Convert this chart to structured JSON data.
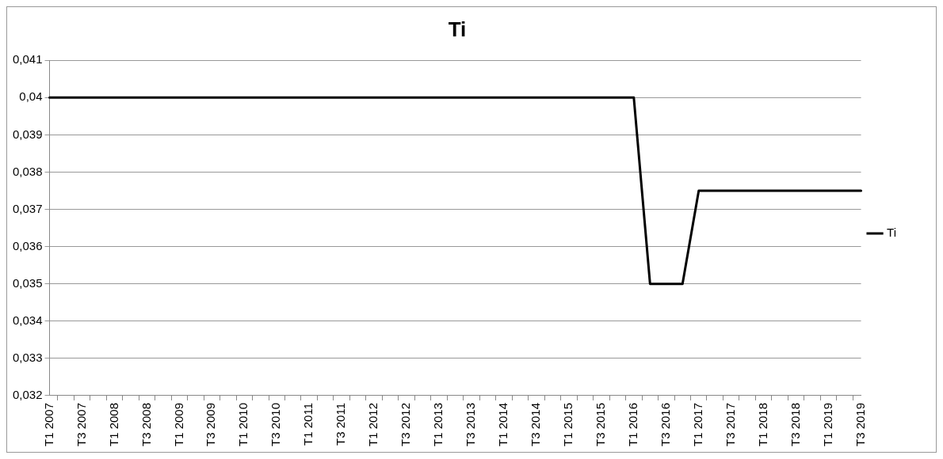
{
  "chart_data": {
    "type": "line",
    "title": "Ti",
    "categories": [
      "T1 2007",
      null,
      "T3 2007",
      null,
      "T1 2008",
      null,
      "T3 2008",
      null,
      "T1 2009",
      null,
      "T3 2009",
      null,
      "T1 2010",
      null,
      "T3 2010",
      null,
      "T1 2011",
      null,
      "T3 2011",
      null,
      "T1 2012",
      null,
      "T3 2012",
      null,
      "T1 2013",
      null,
      "T3 2013",
      null,
      "T1 2014",
      null,
      "T3 2014",
      null,
      "T1 2015",
      null,
      "T3 2015",
      null,
      "T1 2016",
      null,
      "T3 2016",
      null,
      "T1 2017",
      null,
      "T3 2017",
      null,
      "T1 2018",
      null,
      "T3 2018",
      null,
      "T1 2019",
      null,
      "T3 2019"
    ],
    "series": [
      {
        "name": "Ti",
        "color": "#000000",
        "values": [
          0.04,
          0.04,
          0.04,
          0.04,
          0.04,
          0.04,
          0.04,
          0.04,
          0.04,
          0.04,
          0.04,
          0.04,
          0.04,
          0.04,
          0.04,
          0.04,
          0.04,
          0.04,
          0.04,
          0.04,
          0.04,
          0.04,
          0.04,
          0.04,
          0.04,
          0.04,
          0.04,
          0.04,
          0.04,
          0.04,
          0.04,
          0.04,
          0.04,
          0.04,
          0.04,
          0.04,
          0.04,
          0.035,
          0.035,
          0.035,
          0.0375,
          0.0375,
          0.0375,
          0.0375,
          0.0375,
          0.0375,
          0.0375,
          0.0375,
          0.0375,
          0.0375,
          0.0375
        ]
      }
    ],
    "ylim": [
      0.032,
      0.041
    ],
    "yticks": [
      {
        "value": 0.032,
        "label": "0,032"
      },
      {
        "value": 0.033,
        "label": "0,033"
      },
      {
        "value": 0.034,
        "label": "0,034"
      },
      {
        "value": 0.035,
        "label": "0,035"
      },
      {
        "value": 0.036,
        "label": "0,036"
      },
      {
        "value": 0.037,
        "label": "0,037"
      },
      {
        "value": 0.038,
        "label": "0,038"
      },
      {
        "value": 0.039,
        "label": "0,039"
      },
      {
        "value": 0.04,
        "label": "0,04"
      },
      {
        "value": 0.041,
        "label": "0,041"
      }
    ],
    "grid": "y",
    "legend": "right",
    "marker": "none",
    "line_style": "solid"
  }
}
